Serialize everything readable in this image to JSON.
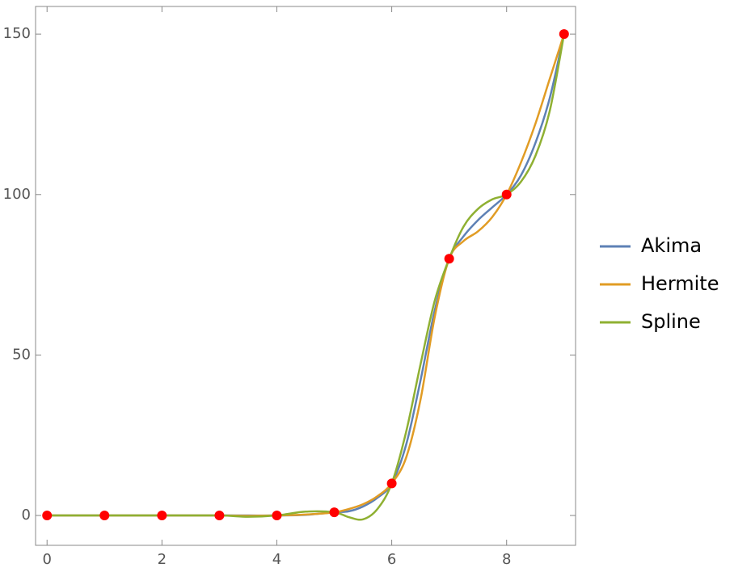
{
  "chart_data": {
    "type": "line",
    "x": [
      0,
      1,
      2,
      3,
      3.5,
      4,
      4.5,
      5,
      5.25,
      5.5,
      5.75,
      6,
      6.25,
      6.5,
      6.75,
      7,
      7.25,
      7.5,
      7.75,
      8,
      8.25,
      8.5,
      8.75,
      9
    ],
    "series": [
      {
        "name": "Akima",
        "color": "#5e81b5",
        "values": [
          0,
          0,
          0,
          0,
          0,
          0,
          0.2,
          1,
          1.3,
          2.8,
          5.5,
          10,
          22,
          42,
          64,
          80,
          87,
          92,
          96,
          100,
          106,
          116,
          130,
          150
        ]
      },
      {
        "name": "Hermite",
        "color": "#e19c24",
        "values": [
          0,
          0,
          0,
          0,
          -0.1,
          0,
          0.3,
          1,
          2,
          3.5,
          6,
          10,
          18,
          36,
          62,
          80,
          85.5,
          88.5,
          93,
          100,
          110,
          122,
          136,
          150
        ]
      },
      {
        "name": "Spline",
        "color": "#8fb032",
        "values": [
          0,
          0,
          0,
          0,
          -0.4,
          0,
          1.2,
          1,
          -0.5,
          -1.2,
          2,
          10,
          26,
          47,
          67,
          80,
          90,
          95.5,
          98.5,
          100,
          104,
          112,
          126,
          150
        ]
      }
    ],
    "points": {
      "color": "#ff0000",
      "x": [
        0,
        1,
        2,
        3,
        4,
        5,
        6,
        7,
        8,
        9
      ],
      "y": [
        0,
        0,
        0,
        0,
        0,
        1,
        10,
        80,
        100,
        150
      ]
    },
    "xlim": [
      -0.2,
      9.2
    ],
    "ylim": [
      -9.3,
      158.6
    ],
    "xticks": [
      0,
      2,
      4,
      6,
      8
    ],
    "yticks": [
      0,
      50,
      100,
      150
    ]
  }
}
